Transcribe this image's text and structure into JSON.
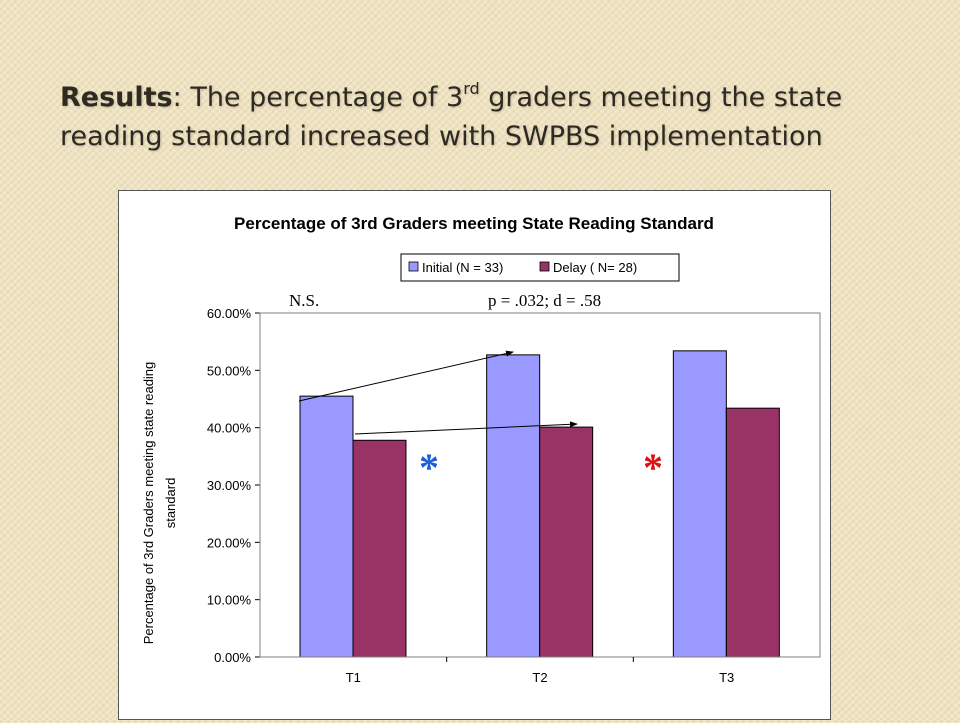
{
  "slide": {
    "title_bold": "Results",
    "title_sep": ": The percentage of 3",
    "title_sup": "rd",
    "title_rest": " graders meeting the state reading standard increased with SWPBS implementation"
  },
  "chart_data": {
    "type": "bar",
    "title": "Percentage of 3rd Graders meeting State Reading Standard",
    "xlabel": "",
    "ylabel": "Percentage of 3rd Graders meeting state reading standard",
    "categories": [
      "T1",
      "T2",
      "T3"
    ],
    "series": [
      {
        "name": "Initial (N = 33)",
        "color": "#9999ff",
        "values": [
          0.455,
          0.527,
          0.534
        ]
      },
      {
        "name": "Delay ( N= 28)",
        "color": "#993366",
        "values": [
          0.378,
          0.401,
          0.434
        ]
      }
    ],
    "ylim": [
      0,
      0.6
    ],
    "yticks": [
      0,
      0.1,
      0.2,
      0.3,
      0.4,
      0.5,
      0.6
    ],
    "ytick_labels": [
      "0.00%",
      "10.00%",
      "20.00%",
      "30.00%",
      "40.00%",
      "50.00%",
      "60.00%"
    ],
    "grid": false,
    "legend_position": "top-right",
    "annotations": {
      "left_note": "N.S.",
      "right_note": "p = .032; d = .58",
      "star_blue": "*",
      "star_red": "*",
      "star_blue_color": "#1a5fd6",
      "star_red_color": "#dd1111"
    }
  }
}
